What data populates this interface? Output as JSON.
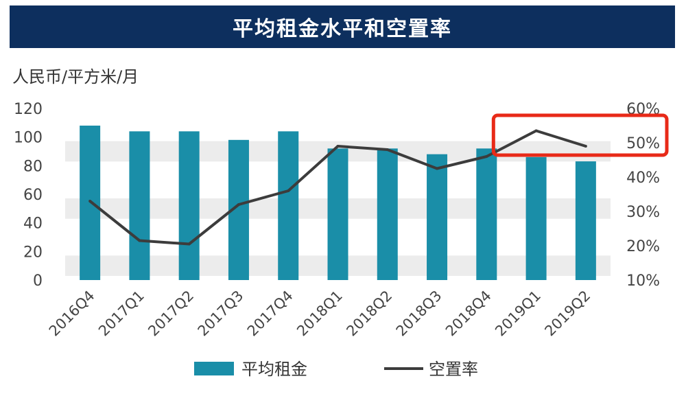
{
  "header": {
    "title": "平均租金水平和空置率"
  },
  "unit_label": "人民币/平方米/月",
  "colors": {
    "title_bg": "#0d2f5e",
    "bar": "#1a8ea8",
    "line": "#3c3c3c",
    "band": "#ececec",
    "highlight": "#e82a18"
  },
  "legend": {
    "bar_label": "平均租金",
    "line_label": "空置率"
  },
  "chart_data": {
    "type": "bar",
    "categories": [
      "2016Q4",
      "2017Q1",
      "2017Q2",
      "2017Q3",
      "2017Q4",
      "2018Q1",
      "2018Q2",
      "2018Q3",
      "2018Q4",
      "2019Q1",
      "2019Q2"
    ],
    "series": [
      {
        "name": "平均租金",
        "type": "bar",
        "axis": "left",
        "values": [
          108,
          104,
          104,
          98,
          104,
          92,
          92,
          88,
          92,
          86,
          83
        ]
      },
      {
        "name": "空置率",
        "type": "line",
        "axis": "right",
        "values": [
          33,
          21.5,
          20.5,
          32,
          36,
          49,
          48,
          42.5,
          46,
          53.5,
          49
        ]
      }
    ],
    "ylim_left": [
      0,
      120
    ],
    "yticks_left": [
      "0",
      "20",
      "40",
      "60",
      "80",
      "100",
      "120"
    ],
    "ylim_right": [
      10,
      60
    ],
    "yticks_right": [
      "10%",
      "20%",
      "30%",
      "40%",
      "50%",
      "60%"
    ],
    "grid": "alternating horizontal bands",
    "legend_position": "bottom",
    "annotation": "red rectangle highlighting 2019Q1–2019Q2 vacancy line and 50% tick"
  }
}
